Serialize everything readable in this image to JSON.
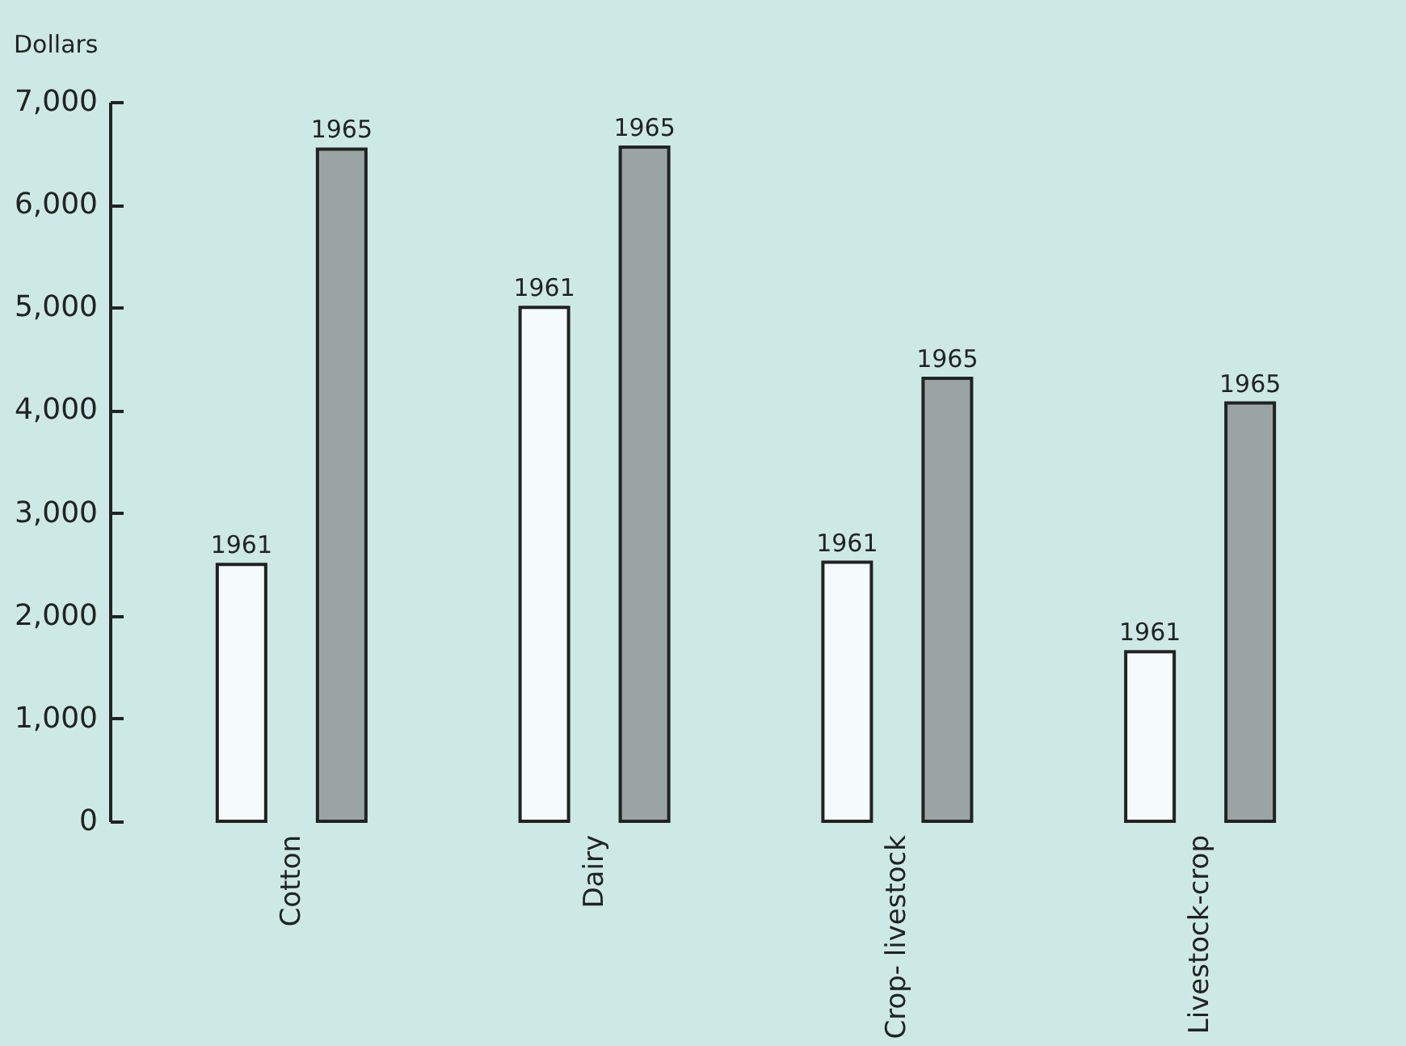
{
  "chart_data": {
    "type": "bar",
    "ylabel": "Dollars",
    "categories": [
      "Cotton",
      "Dairy",
      "Crop- livestock",
      "Livestock-crop"
    ],
    "series": [
      {
        "name": "1961",
        "color": "#f4fbfa",
        "values": [
          2500,
          5000,
          2520,
          1650
        ]
      },
      {
        "name": "1965",
        "color": "#9aa5a3",
        "values": [
          6540,
          6560,
          4310,
          4070
        ]
      }
    ],
    "ylim": [
      0,
      7000
    ],
    "yticks": [
      0,
      {
        "value": 1000,
        "label": "1,000"
      },
      {
        "value": 2000,
        "label": "2,000"
      },
      {
        "value": 3000,
        "label": "3,000"
      },
      {
        "value": 4000,
        "label": "4,000"
      },
      {
        "value": 5000,
        "label": "5,000"
      },
      {
        "value": 6000,
        "label": "6,000"
      },
      {
        "value": 7000,
        "label": "7,000"
      }
    ],
    "grid": false,
    "legend": false
  }
}
